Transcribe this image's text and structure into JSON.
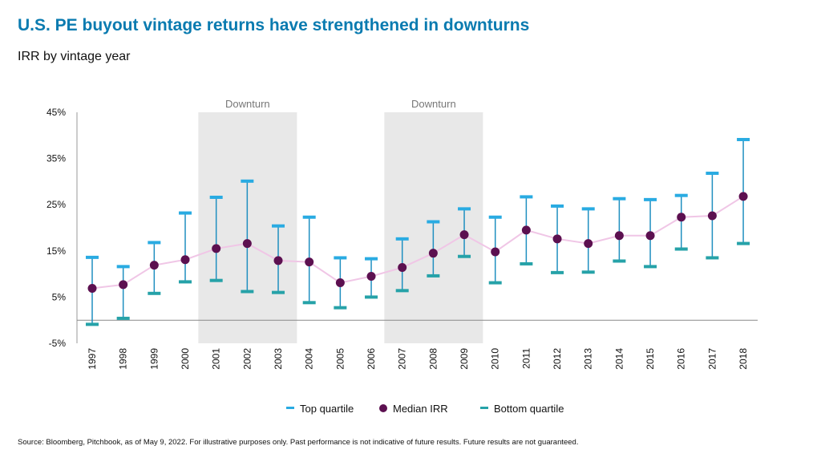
{
  "title": "U.S. PE buyout vintage returns have strengthened in downturns",
  "subtitle": "IRR by vintage year",
  "source": "Source: Bloomberg, Pitchbook, as of May 9, 2022. For illustrative purposes only. Past performance is not indicative of future results. Future results are not guaranteed.",
  "chart_data": {
    "type": "scatter",
    "ylim": [
      -5,
      45
    ],
    "yticks": [
      45,
      35,
      25,
      15,
      5,
      -5
    ],
    "ytick_labels": [
      "45%",
      "35%",
      "25%",
      "15%",
      "5%",
      "-5%"
    ],
    "negative_tick_color": "#e0191f",
    "categories": [
      "1997",
      "1998",
      "1999",
      "2000",
      "2001",
      "2002",
      "2003",
      "2004",
      "2005",
      "2006",
      "2007",
      "2008",
      "2009",
      "2010",
      "2011",
      "2012",
      "2013",
      "2014",
      "2015",
      "2016",
      "2017",
      "2018"
    ],
    "series": [
      {
        "name": "Top quartile",
        "color": "#29abe2",
        "values": [
          13.6,
          11.6,
          16.8,
          23.2,
          26.6,
          30.1,
          20.4,
          22.3,
          13.5,
          13.3,
          17.6,
          21.3,
          24.1,
          22.3,
          26.7,
          24.7,
          24.1,
          26.3,
          26.1,
          27.0,
          31.8,
          39.1
        ]
      },
      {
        "name": "Median IRR",
        "color": "#5c1050",
        "values": [
          6.9,
          7.7,
          11.9,
          13.1,
          15.5,
          16.6,
          12.9,
          12.6,
          8.1,
          9.5,
          11.4,
          14.5,
          18.5,
          14.8,
          19.5,
          17.6,
          16.6,
          18.3,
          18.3,
          22.3,
          22.6,
          26.8
        ]
      },
      {
        "name": "Bottom quartile",
        "color": "#26a2a8",
        "values": [
          -0.9,
          0.4,
          5.8,
          8.3,
          8.6,
          6.2,
          6.0,
          3.8,
          2.7,
          5.0,
          6.4,
          9.6,
          13.8,
          8.1,
          12.2,
          10.3,
          10.4,
          12.8,
          11.6,
          15.4,
          13.5,
          16.6
        ]
      }
    ],
    "whisker_color": "#1f8fc0",
    "median_line_color": "#f0c6e6",
    "annotations": [
      {
        "label": "Downturn",
        "from": "2001",
        "to": "2003"
      },
      {
        "label": "Downturn",
        "from": "2007",
        "to": "2009"
      }
    ],
    "shade_color": "#e8e8e8",
    "legend_placement": "bottom",
    "grid": false
  }
}
